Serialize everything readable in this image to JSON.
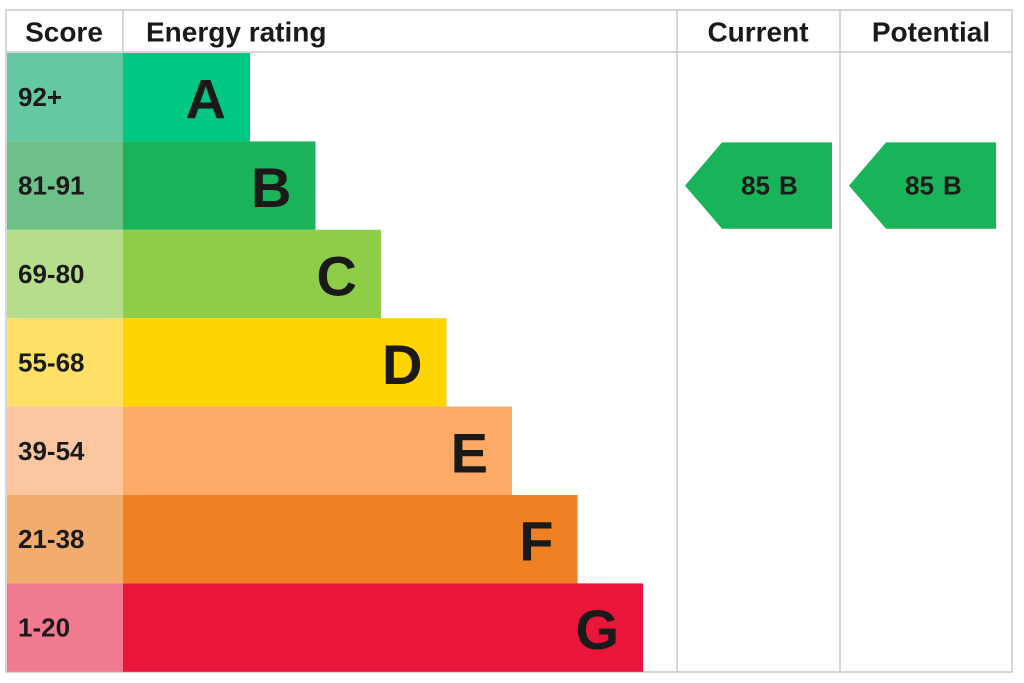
{
  "header": {
    "score": "Score",
    "rating": "Energy rating",
    "current": "Current",
    "potential": "Potential"
  },
  "bands": [
    {
      "score": "92+",
      "letter": "A",
      "color": "#00c781",
      "score_color": "#64c8a3"
    },
    {
      "score": "81-91",
      "letter": "B",
      "color": "#19b459",
      "score_color": "#6cc088"
    },
    {
      "score": "69-80",
      "letter": "C",
      "color": "#8dce46",
      "score_color": "#b5dd8b"
    },
    {
      "score": "55-68",
      "letter": "D",
      "color": "#ffd500",
      "score_color": "#ffe066"
    },
    {
      "score": "39-54",
      "letter": "E",
      "color": "#fcaa65",
      "score_color": "#fcc6a0"
    },
    {
      "score": "21-38",
      "letter": "F",
      "color": "#ef8023",
      "score_color": "#f2ac6e"
    },
    {
      "score": "1-20",
      "letter": "G",
      "color": "#e9153b",
      "score_color": "#f07b91"
    }
  ],
  "current": {
    "score": 85,
    "letter": "B"
  },
  "potential": {
    "score": 85,
    "letter": "B"
  }
}
